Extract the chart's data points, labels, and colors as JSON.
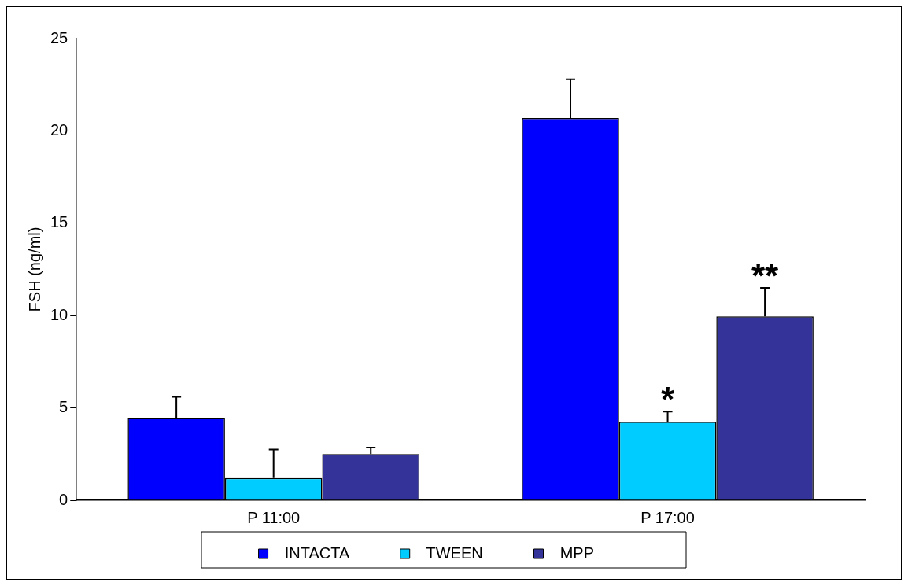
{
  "chart_data": {
    "type": "bar",
    "ylabel": "FSH (ng/ml)",
    "categories": [
      "P 11:00",
      "P 17:00"
    ],
    "series": [
      {
        "name": "INTACTA",
        "color": "#0000ff",
        "values": [
          4.45,
          20.7
        ],
        "errors": [
          [
            4.45,
            5.6
          ],
          [
            20.7,
            22.8
          ]
        ]
      },
      {
        "name": "TWEEN",
        "color": "#00ccff",
        "values": [
          1.2,
          4.25
        ],
        "errors": [
          [
            1.2,
            2.75
          ],
          [
            4.25,
            4.8
          ]
        ]
      },
      {
        "name": "MPP",
        "color": "#333399",
        "values": [
          2.5,
          9.95
        ],
        "errors": [
          [
            2.5,
            2.85
          ],
          [
            9.95,
            11.5
          ]
        ]
      }
    ],
    "ylim": [
      0,
      25
    ],
    "yticks": [
      0,
      5,
      10,
      15,
      20,
      25
    ],
    "grid": false,
    "legend": "bottom",
    "annotations": [
      "*",
      "**"
    ]
  }
}
